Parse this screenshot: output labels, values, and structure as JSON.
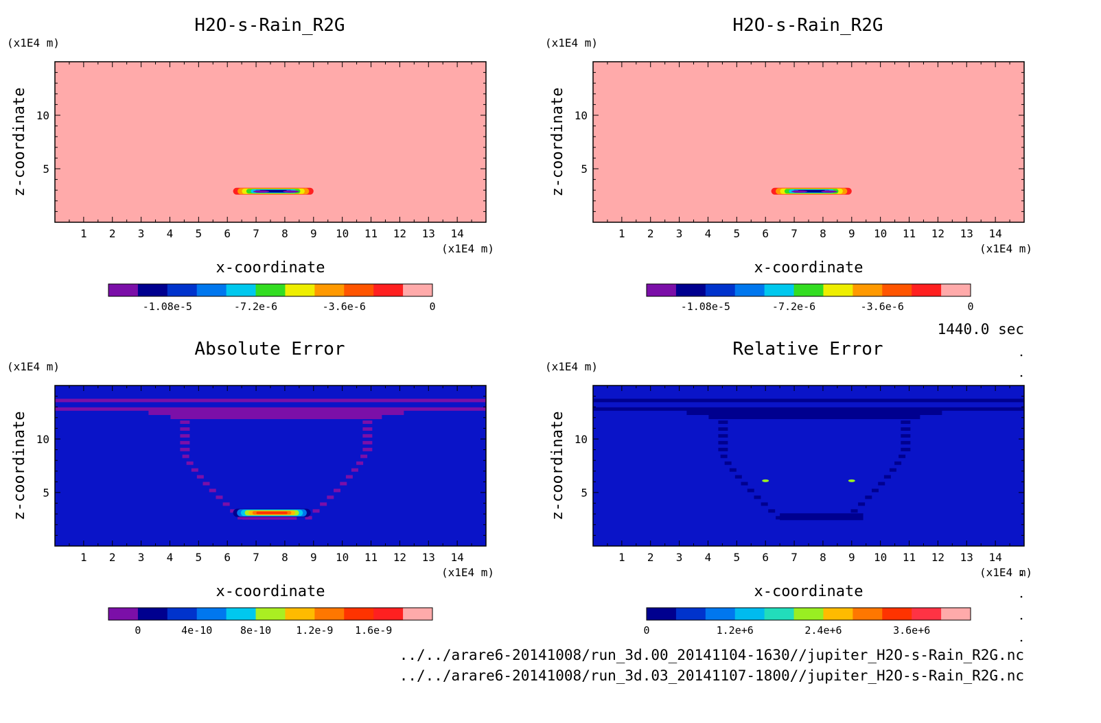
{
  "chart_data": [
    {
      "type": "heatmap",
      "title": "H2O-s-Rain_R2G",
      "xlabel": "x-coordinate",
      "ylabel": "z-coordinate",
      "x_unit": "(x1E4 m)",
      "y_unit": "(x1E4 m)",
      "xlim": [
        0,
        15
      ],
      "ylim": [
        0,
        15
      ],
      "x_ticks": [
        "1",
        "2",
        "3",
        "4",
        "5",
        "6",
        "7",
        "8",
        "9",
        "10",
        "11",
        "12",
        "13",
        "14"
      ],
      "y_ticks": [
        "5",
        "10"
      ],
      "background": "#ffaaaa",
      "features": [
        {
          "kind": "blob",
          "x_range": [
            6.2,
            9.0
          ],
          "z_center": 2.9,
          "level": "min"
        }
      ],
      "colorbar": {
        "colors": [
          "#7b0fa8",
          "#00008f",
          "#0033cc",
          "#0077ee",
          "#00c8ee",
          "#33dd22",
          "#eeee00",
          "#ff9900",
          "#ff5500",
          "#ff2020",
          "#ffaaaa"
        ],
        "labels": [
          "-1.08e-5",
          "-7.2e-6",
          "-3.6e-6",
          "0"
        ]
      }
    },
    {
      "type": "heatmap",
      "title": "H2O-s-Rain_R2G",
      "xlabel": "x-coordinate",
      "ylabel": "z-coordinate",
      "x_unit": "(x1E4 m)",
      "y_unit": "(x1E4 m)",
      "xlim": [
        0,
        15
      ],
      "ylim": [
        0,
        15
      ],
      "x_ticks": [
        "1",
        "2",
        "3",
        "4",
        "5",
        "6",
        "7",
        "8",
        "9",
        "10",
        "11",
        "12",
        "13",
        "14"
      ],
      "y_ticks": [
        "5",
        "10"
      ],
      "background": "#ffaaaa",
      "features": [
        {
          "kind": "blob",
          "x_range": [
            6.2,
            9.0
          ],
          "z_center": 2.9,
          "level": "min"
        }
      ],
      "colorbar": {
        "colors": [
          "#7b0fa8",
          "#00008f",
          "#0033cc",
          "#0077ee",
          "#00c8ee",
          "#33dd22",
          "#eeee00",
          "#ff9900",
          "#ff5500",
          "#ff2020",
          "#ffaaaa"
        ],
        "labels": [
          "-1.08e-5",
          "-7.2e-6",
          "-3.6e-6",
          "0"
        ]
      }
    },
    {
      "type": "heatmap",
      "title": "Absolute Error",
      "xlabel": "x-coordinate",
      "ylabel": "z-coordinate",
      "x_unit": "(x1E4 m)",
      "y_unit": "(x1E4 m)",
      "xlim": [
        0,
        15
      ],
      "ylim": [
        0,
        15
      ],
      "x_ticks": [
        "1",
        "2",
        "3",
        "4",
        "5",
        "6",
        "7",
        "8",
        "9",
        "10",
        "11",
        "12",
        "13",
        "14"
      ],
      "y_ticks": [
        "5",
        "10"
      ],
      "background": "#0a14c8",
      "features": [
        {
          "kind": "band",
          "z": 13.6,
          "color_level": 1
        },
        {
          "kind": "band",
          "z": 12.8,
          "color_level": 1
        },
        {
          "kind": "arch",
          "x_left": 4.5,
          "x_right": 10.9,
          "z_top": 12.5,
          "z_bottom": 2.8,
          "color_level": 1
        },
        {
          "kind": "blob",
          "x_range": [
            6.2,
            8.9
          ],
          "z_center": 3.1,
          "level": "max"
        }
      ],
      "colorbar": {
        "colors": [
          "#7b0fa8",
          "#00008f",
          "#0033cc",
          "#0077ee",
          "#00c8ee",
          "#aaee22",
          "#ffbb00",
          "#ff7700",
          "#ff3300",
          "#ff2020",
          "#ffaaaa"
        ],
        "labels": [
          "0",
          "4e-10",
          "8e-10",
          "1.2e-9",
          "1.6e-9"
        ]
      }
    },
    {
      "type": "heatmap",
      "title": "Relative Error",
      "xlabel": "x-coordinate",
      "ylabel": "z-coordinate",
      "x_unit": "(x1E4 m)",
      "y_unit": "(x1E4 m)",
      "xlim": [
        0,
        15
      ],
      "ylim": [
        0,
        15
      ],
      "x_ticks": [
        "1",
        "2",
        "3",
        "4",
        "5",
        "6",
        "7",
        "8",
        "9",
        "10",
        "11",
        "12",
        "13",
        "14"
      ],
      "y_ticks": [
        "5",
        "10"
      ],
      "background": "#0a14c8",
      "features": [
        {
          "kind": "band",
          "z": 13.6,
          "color_level": 1
        },
        {
          "kind": "band",
          "z": 12.8,
          "color_level": 1
        },
        {
          "kind": "arch",
          "x_left": 4.5,
          "x_right": 10.9,
          "z_top": 12.5,
          "z_bottom": 2.8,
          "color_level": 1
        },
        {
          "kind": "spot",
          "x": 6.0,
          "z": 6.1,
          "color_level": 5
        },
        {
          "kind": "spot",
          "x": 9.0,
          "z": 6.1,
          "color_level": 5
        }
      ],
      "colorbar": {
        "colors": [
          "#00008f",
          "#0033cc",
          "#0077ee",
          "#00bbee",
          "#22ddbb",
          "#99ee22",
          "#ffbb00",
          "#ff7700",
          "#ff3300",
          "#ff3344",
          "#ffaaaa"
        ],
        "labels": [
          "0",
          "1.2e+6",
          "2.4e+6",
          "3.6e+6"
        ]
      }
    }
  ],
  "time_label": "1440.0 sec",
  "file_paths": [
    "../../arare6-20141008/run_3d.00_20141104-1630//jupiter_H2O-s-Rain_R2G.nc",
    "../../arare6-20141008/run_3d.03_20141107-1800//jupiter_H2O-s-Rain_R2G.nc"
  ]
}
